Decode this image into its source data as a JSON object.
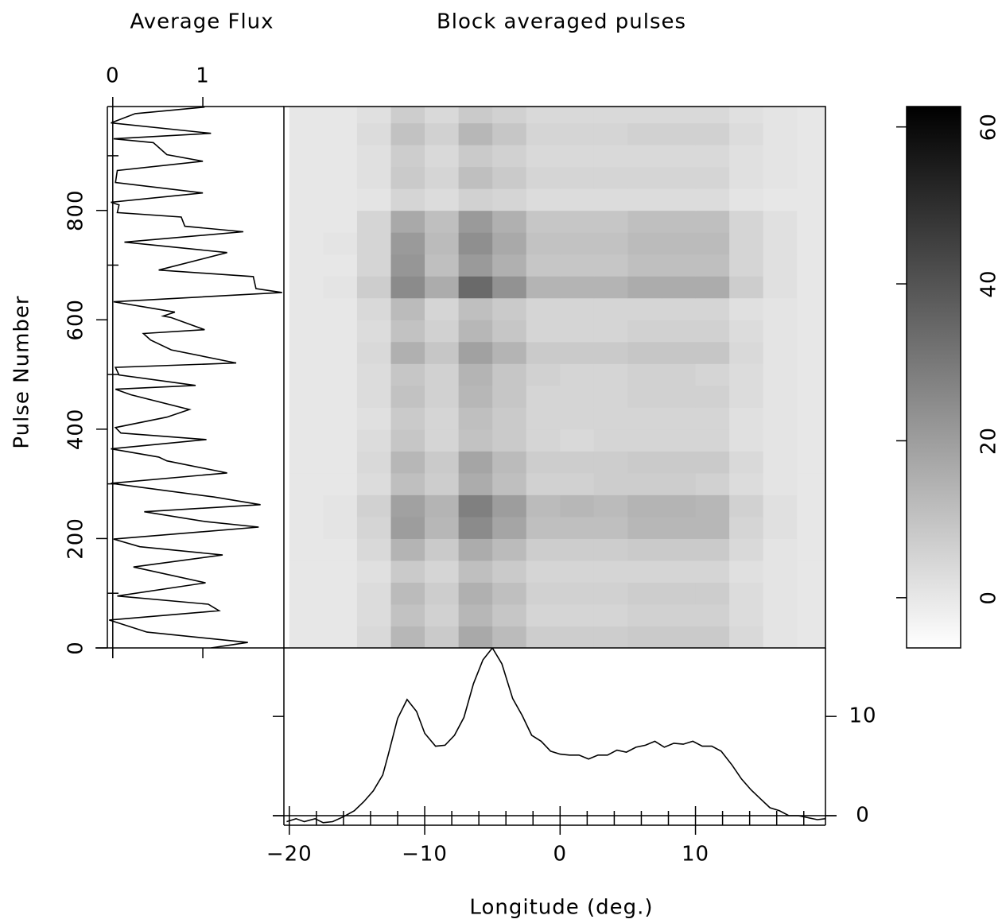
{
  "chart_data": [
    {
      "type": "line",
      "title": "Average Flux",
      "ylabel": "Pulse Number",
      "xlim": [
        -0.06,
        1.9
      ],
      "xticks": [
        0,
        1
      ],
      "ylim": [
        0,
        990
      ],
      "yticks": [
        0,
        200,
        400,
        600,
        800
      ],
      "yminorticks": [
        100,
        300,
        500,
        700,
        900
      ],
      "refline": 0,
      "color": "#000000",
      "x": [
        0,
        10,
        29,
        51,
        68,
        80,
        95,
        119,
        148,
        170,
        185,
        199,
        221,
        231,
        249,
        262,
        276,
        301,
        320,
        342,
        349,
        364,
        381,
        393,
        403,
        422,
        436,
        463,
        473,
        480,
        499,
        513,
        521,
        545,
        563,
        575,
        582,
        604,
        607,
        614,
        633,
        650,
        657,
        679,
        691,
        723,
        742,
        761,
        771,
        788,
        796,
        810,
        815,
        832,
        851,
        873,
        890,
        902,
        924,
        931,
        941,
        960,
        977,
        989
      ],
      "values": [
        1.09,
        1.5,
        0.38,
        -0.04,
        1.18,
        1.06,
        0.05,
        1.03,
        0.23,
        1.22,
        0.3,
        0.01,
        1.62,
        1.03,
        0.35,
        1.64,
        1.12,
        -0.02,
        1.27,
        0.6,
        0.51,
        -0.02,
        1.04,
        0.09,
        0.03,
        0.6,
        0.85,
        0.2,
        0.03,
        0.92,
        0.07,
        0.03,
        1.37,
        0.65,
        0.42,
        0.34,
        1.02,
        0.65,
        0.56,
        0.69,
        0.01,
        1.88,
        1.59,
        1.56,
        0.51,
        1.27,
        0.13,
        1.45,
        0.8,
        0.76,
        0.05,
        0.07,
        -0.02,
        1.0,
        0.03,
        0.05,
        1.0,
        0.6,
        0.45,
        0.01,
        1.09,
        -0.02,
        0.25,
        1.02
      ]
    },
    {
      "type": "heatmap",
      "title": "Block averaged pulses",
      "xlim": [
        -20.4,
        19.6
      ],
      "ylim": [
        0,
        990
      ],
      "zlim": [
        -6.4,
        62.6
      ],
      "zticks": [
        0,
        20,
        40,
        60
      ],
      "colors": [
        "#ffffff",
        "#000000"
      ],
      "x": [
        -18.75,
        -16.25,
        -13.75,
        -11.25,
        -8.75,
        -6.25,
        -3.75,
        -1.25,
        1.25,
        3.75,
        6.25,
        8.75,
        11.25,
        13.75,
        16.25,
        18.75
      ],
      "y": [
        20,
        60,
        100,
        140,
        180,
        220,
        260,
        300,
        340,
        380,
        420,
        460,
        500,
        540,
        580,
        620,
        660,
        700,
        740,
        780,
        820,
        860,
        900,
        940,
        980
      ],
      "values": [
        [
          0,
          0,
          4,
          13,
          8,
          17,
          12,
          7,
          7,
          7,
          8,
          8,
          8,
          4,
          1,
          0
        ],
        [
          0,
          0,
          3,
          10,
          6,
          13,
          9,
          5,
          5,
          5,
          6,
          6,
          6,
          3,
          1,
          0
        ],
        [
          0,
          0,
          3,
          12,
          7,
          15,
          11,
          6,
          6,
          6,
          7,
          7,
          7,
          3,
          1,
          0
        ],
        [
          0,
          0,
          2,
          8,
          5,
          11,
          8,
          5,
          5,
          5,
          5,
          5,
          5,
          2,
          1,
          0
        ],
        [
          0,
          0,
          4,
          14,
          8,
          16,
          12,
          7,
          7,
          7,
          8,
          8,
          8,
          4,
          1,
          0
        ],
        [
          0,
          1,
          5,
          20,
          13,
          25,
          18,
          11,
          11,
          11,
          13,
          13,
          13,
          5,
          2,
          0
        ],
        [
          0,
          1,
          6,
          19,
          14,
          28,
          20,
          12,
          13,
          12,
          14,
          14,
          13,
          6,
          2,
          0
        ],
        [
          0,
          0,
          3,
          11,
          7,
          16,
          11,
          6,
          6,
          7,
          7,
          7,
          6,
          3,
          1,
          0
        ],
        [
          0,
          0,
          4,
          13,
          8,
          18,
          12,
          7,
          7,
          7,
          8,
          8,
          8,
          4,
          1,
          0
        ],
        [
          0,
          0,
          3,
          9,
          5,
          10,
          8,
          5,
          4,
          5,
          5,
          5,
          5,
          2,
          1,
          0
        ],
        [
          0,
          0,
          2,
          8,
          5,
          11,
          8,
          5,
          5,
          5,
          5,
          5,
          5,
          2,
          1,
          0
        ],
        [
          0,
          0,
          3,
          10,
          6,
          13,
          9,
          5,
          5,
          5,
          6,
          6,
          6,
          3,
          1,
          0
        ],
        [
          0,
          0,
          3,
          9,
          6,
          14,
          9,
          6,
          5,
          5,
          6,
          6,
          5,
          3,
          1,
          0
        ],
        [
          0,
          0,
          4,
          15,
          9,
          19,
          14,
          8,
          8,
          8,
          9,
          9,
          9,
          4,
          1,
          0
        ],
        [
          0,
          0,
          3,
          10,
          6,
          13,
          9,
          5,
          5,
          5,
          6,
          6,
          6,
          3,
          1,
          0
        ],
        [
          0,
          0,
          4,
          12,
          5,
          11,
          8,
          5,
          5,
          5,
          5,
          5,
          5,
          2,
          1,
          0
        ],
        [
          0,
          1,
          7,
          25,
          16,
          34,
          23,
          14,
          14,
          14,
          16,
          16,
          16,
          7,
          2,
          0
        ],
        [
          0,
          0,
          5,
          22,
          11,
          21,
          15,
          9,
          9,
          9,
          11,
          11,
          11,
          5,
          2,
          0
        ],
        [
          0,
          1,
          5,
          21,
          12,
          24,
          17,
          10,
          10,
          10,
          12,
          12,
          12,
          5,
          2,
          0
        ],
        [
          0,
          0,
          5,
          17,
          11,
          21,
          15,
          9,
          9,
          9,
          11,
          11,
          11,
          5,
          2,
          0
        ],
        [
          0,
          0,
          1,
          5,
          3,
          6,
          5,
          3,
          3,
          3,
          3,
          3,
          3,
          1,
          0,
          0
        ],
        [
          0,
          0,
          2,
          8,
          5,
          11,
          8,
          5,
          5,
          5,
          5,
          5,
          5,
          2,
          1,
          0
        ],
        [
          0,
          0,
          2,
          7,
          4,
          8,
          6,
          4,
          4,
          4,
          4,
          4,
          4,
          2,
          1,
          0
        ],
        [
          0,
          0,
          3,
          10,
          6,
          13,
          9,
          5,
          5,
          5,
          6,
          6,
          6,
          3,
          1,
          0
        ],
        [
          0,
          0,
          2,
          7,
          4,
          8,
          6,
          4,
          4,
          4,
          4,
          4,
          4,
          2,
          1,
          0
        ]
      ]
    },
    {
      "type": "line",
      "xlabel": "Longitude (deg.)",
      "color": "#000000",
      "xlim": [
        -20.4,
        19.6
      ],
      "xticks": [
        {
          "value": -20,
          "label": "−20"
        },
        {
          "value": -10,
          "label": "−10"
        },
        0,
        10
      ],
      "xminorticks": [
        -18,
        -16,
        -14,
        -12,
        -8,
        -6,
        -4,
        -2,
        2,
        4,
        6,
        8,
        12,
        14,
        16,
        18
      ],
      "ylim": [
        -0.96,
        16.9
      ],
      "yticks": [
        0,
        10
      ],
      "refline": 0,
      "x": [
        -20.2,
        -19.5,
        -18.9,
        -18.1,
        -17.5,
        -16.8,
        -16.0,
        -15.2,
        -14.5,
        -13.8,
        -13.1,
        -12.7,
        -12.0,
        -11.3,
        -10.6,
        -10.0,
        -9.2,
        -8.5,
        -7.8,
        -7.1,
        -6.4,
        -5.7,
        -5.0,
        -4.3,
        -3.5,
        -2.8,
        -2.1,
        -1.4,
        -0.7,
        0,
        0.7,
        1.4,
        2.1,
        2.8,
        3.5,
        4.2,
        4.9,
        5.6,
        6.3,
        7.0,
        7.7,
        8.4,
        9.1,
        9.8,
        10.5,
        11.2,
        11.9,
        12.7,
        13.4,
        14.1,
        14.8,
        15.5,
        16.2,
        16.9,
        17.6,
        18.3,
        19.0,
        19.6
      ],
      "values": [
        -0.6,
        -0.3,
        -0.6,
        -0.3,
        -0.7,
        -0.6,
        -0.1,
        0.5,
        1.4,
        2.5,
        4.1,
        6.1,
        9.8,
        11.7,
        10.5,
        8.3,
        7.0,
        7.1,
        8.1,
        9.9,
        13.3,
        15.7,
        16.9,
        15.3,
        11.8,
        10.1,
        8.1,
        7.5,
        6.5,
        6.2,
        6.1,
        6.1,
        5.7,
        6.1,
        6.1,
        6.6,
        6.4,
        6.9,
        7.1,
        7.5,
        6.9,
        7.3,
        7.2,
        7.5,
        7.0,
        7.0,
        6.5,
        5.1,
        3.7,
        2.6,
        1.7,
        0.8,
        0.5,
        0,
        0,
        -0.2,
        -0.4,
        -0.3
      ]
    }
  ]
}
